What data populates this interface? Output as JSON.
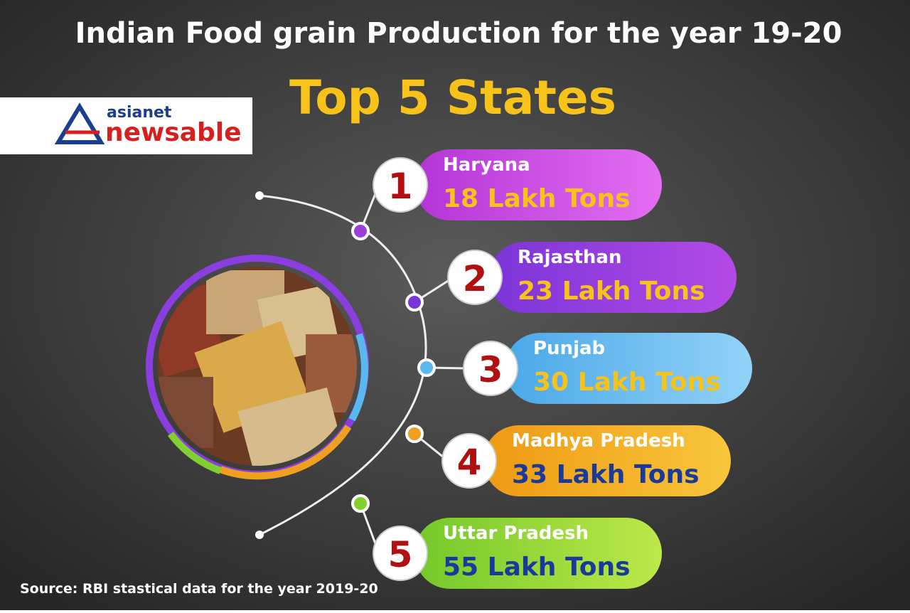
{
  "header": {
    "title": "Indian Food grain Production for the year 19-20",
    "subtitle": "Top 5 States"
  },
  "logo": {
    "top": "asianet",
    "bottom": "newsable"
  },
  "items": [
    {
      "rank": "1",
      "state": "Haryana",
      "value": "18 Lakh Tons"
    },
    {
      "rank": "2",
      "state": "Rajasthan",
      "value": "23 Lakh Tons"
    },
    {
      "rank": "3",
      "state": "Punjab",
      "value": "30 Lakh Tons"
    },
    {
      "rank": "4",
      "state": "Madhya Pradesh",
      "value": "33 Lakh Tons"
    },
    {
      "rank": "5",
      "state": "Uttar Pradesh",
      "value": "55 Lakh Tons"
    }
  ],
  "source": "Source: RBI stastical data for the year 2019-20"
}
